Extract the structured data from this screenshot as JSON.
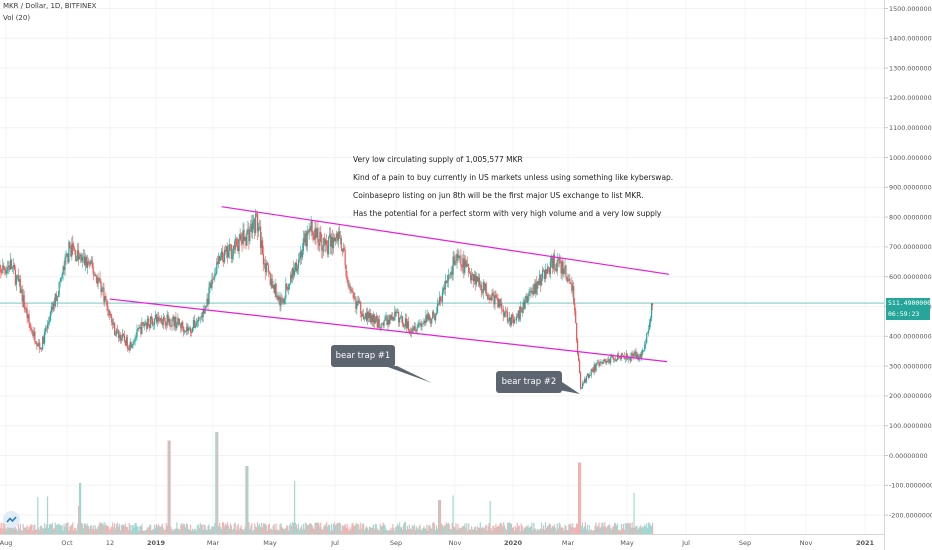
{
  "header": {
    "title": "MKR / Dollar, 1D, BITFINEX",
    "indicator": "Vol (20)"
  },
  "price_badge": {
    "price": "511.49000000",
    "countdown": "06:59:23"
  },
  "annotations": [
    "Very low circulating supply of 1,005,577 MKR",
    "Kind of a pain to buy currently in US markets unless using something like kyberswap.",
    "Coinbasepro listing on jun 8th will be the first major US exchange to list MKR.",
    "Has the potential for a perfect storm with very high volume and a very low supply"
  ],
  "callouts": {
    "trap1": "bear trap #1",
    "trap2": "bear trap #2"
  },
  "colors": {
    "up": "#26a69a",
    "down": "#ef5350",
    "channel": "#e91ed8",
    "callout": "#5d6670",
    "price_line": "#26a69a"
  },
  "chart_data": {
    "type": "candlestick",
    "title": "MKR / Dollar, 1D, BITFINEX",
    "y_axis": {
      "side": "right",
      "ticks": [
        "1500.00000000",
        "1400.00000000",
        "1300.00000000",
        "1200.00000000",
        "1100.00000000",
        "1000.00000000",
        "900.00000000",
        "800.00000000",
        "700.00000000",
        "600.00000000",
        "500.00000000",
        "400.00000000",
        "300.00000000",
        "200.00000000",
        "100.00000000",
        "0.00000000",
        "-100.00000000",
        "-200.00000000"
      ],
      "ylim": [
        -230,
        1530
      ]
    },
    "x_axis": {
      "ticks": [
        "Aug",
        "Oct",
        "12",
        "2019",
        "Mar",
        "May",
        "Jul",
        "Sep",
        "Nov",
        "2020",
        "Mar",
        "May",
        "Jul",
        "Sep",
        "Nov",
        "2021"
      ],
      "range": [
        "2018-07-20",
        "2021-01-20"
      ]
    },
    "last_price": 511.49,
    "approx_closes": [
      [
        "2018-07-20",
        610
      ],
      [
        "2018-08-05",
        640
      ],
      [
        "2018-08-15",
        560
      ],
      [
        "2018-08-25",
        430
      ],
      [
        "2018-09-05",
        360
      ],
      [
        "2018-09-15",
        470
      ],
      [
        "2018-09-25",
        580
      ],
      [
        "2018-10-05",
        700
      ],
      [
        "2018-10-15",
        660
      ],
      [
        "2018-10-25",
        640
      ],
      [
        "2018-11-05",
        580
      ],
      [
        "2018-11-20",
        420
      ],
      [
        "2018-12-05",
        370
      ],
      [
        "2018-12-20",
        440
      ],
      [
        "2019-01-05",
        460
      ],
      [
        "2019-01-20",
        450
      ],
      [
        "2019-02-05",
        420
      ],
      [
        "2019-02-20",
        480
      ],
      [
        "2019-03-05",
        640
      ],
      [
        "2019-03-20",
        690
      ],
      [
        "2019-04-05",
        740
      ],
      [
        "2019-04-15",
        790
      ],
      [
        "2019-04-25",
        620
      ],
      [
        "2019-05-10",
        510
      ],
      [
        "2019-05-25",
        640
      ],
      [
        "2019-06-10",
        760
      ],
      [
        "2019-06-25",
        700
      ],
      [
        "2019-07-10",
        740
      ],
      [
        "2019-07-20",
        540
      ],
      [
        "2019-08-05",
        470
      ],
      [
        "2019-08-20",
        440
      ],
      [
        "2019-09-05",
        470
      ],
      [
        "2019-09-20",
        430
      ],
      [
        "2019-10-05",
        450
      ],
      [
        "2019-10-15",
        470
      ],
      [
        "2019-10-25",
        560
      ],
      [
        "2019-11-05",
        660
      ],
      [
        "2019-11-20",
        620
      ],
      [
        "2019-12-05",
        560
      ],
      [
        "2019-12-20",
        510
      ],
      [
        "2020-01-05",
        440
      ],
      [
        "2020-01-20",
        540
      ],
      [
        "2020-02-05",
        610
      ],
      [
        "2020-02-15",
        650
      ],
      [
        "2020-02-25",
        620
      ],
      [
        "2020-03-05",
        560
      ],
      [
        "2020-03-13",
        230
      ],
      [
        "2020-03-25",
        290
      ],
      [
        "2020-04-10",
        320
      ],
      [
        "2020-04-25",
        340
      ],
      [
        "2020-05-05",
        330
      ],
      [
        "2020-05-15",
        340
      ],
      [
        "2020-05-22",
        420
      ],
      [
        "2020-05-26",
        511.49
      ]
    ],
    "trendlines": {
      "upper": [
        [
          "2019-03-10",
          835
        ],
        [
          "2020-06-12",
          608
        ]
      ],
      "lower": [
        [
          "2018-11-15",
          525
        ],
        [
          "2020-06-10",
          315
        ]
      ]
    },
    "volume_spikes": [
      [
        "2018-10-15",
        0.3
      ],
      [
        "2019-01-15",
        0.55
      ],
      [
        "2019-03-05",
        0.6
      ],
      [
        "2019-04-05",
        0.4
      ],
      [
        "2019-10-20",
        0.2
      ],
      [
        "2020-03-12",
        0.42
      ]
    ]
  }
}
